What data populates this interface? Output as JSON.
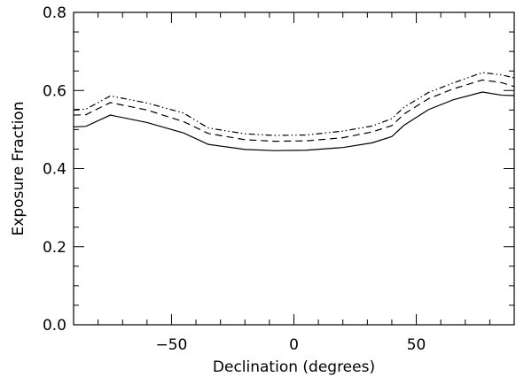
{
  "chart_data": {
    "type": "line",
    "title": "",
    "xlabel": "Declination (degrees)",
    "ylabel": "Exposure Fraction",
    "xlim": [
      -90,
      90
    ],
    "ylim": [
      0.0,
      0.8
    ],
    "x_ticks": [
      -50,
      0,
      50
    ],
    "x_tick_labels": [
      "−50",
      "0",
      "50"
    ],
    "y_ticks": [
      0.0,
      0.2,
      0.4,
      0.6,
      0.8
    ],
    "y_tick_labels": [
      "0.0",
      "0.2",
      "0.4",
      "0.6",
      "0.8"
    ],
    "grid": false,
    "legend": "none",
    "x": [
      -90,
      -85,
      -75,
      -60,
      -45,
      -35,
      -20,
      -8,
      5,
      20,
      32,
      40,
      45,
      55,
      65,
      77,
      85,
      90
    ],
    "series": [
      {
        "style": "solid",
        "values": [
          0.507,
          0.508,
          0.537,
          0.518,
          0.491,
          0.462,
          0.449,
          0.446,
          0.447,
          0.454,
          0.466,
          0.482,
          0.511,
          0.551,
          0.576,
          0.596,
          0.588,
          0.587
        ]
      },
      {
        "style": "dashed",
        "values": [
          0.537,
          0.538,
          0.569,
          0.55,
          0.52,
          0.49,
          0.474,
          0.47,
          0.471,
          0.479,
          0.494,
          0.51,
          0.54,
          0.579,
          0.604,
          0.627,
          0.62,
          0.61
        ]
      },
      {
        "style": "dash-dot-dot",
        "values": [
          0.551,
          0.552,
          0.586,
          0.568,
          0.542,
          0.504,
          0.489,
          0.485,
          0.486,
          0.496,
          0.509,
          0.528,
          0.557,
          0.595,
          0.619,
          0.646,
          0.64,
          0.632
        ]
      }
    ]
  }
}
